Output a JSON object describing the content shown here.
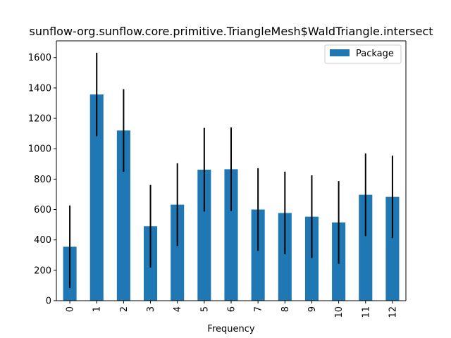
{
  "chart_data": {
    "type": "bar",
    "title": "sunflow-org.sunflow.core.primitive.TriangleMesh$WaldTriangle.intersect",
    "xlabel": "Frequency",
    "ylabel": "",
    "categories": [
      "0",
      "1",
      "2",
      "3",
      "4",
      "5",
      "6",
      "7",
      "8",
      "9",
      "10",
      "11",
      "12"
    ],
    "series": [
      {
        "name": "Package",
        "values": [
          355,
          1357,
          1120,
          490,
          632,
          862,
          865,
          600,
          577,
          553,
          515,
          697,
          683
        ],
        "error": [
          272,
          275,
          272,
          272,
          272,
          275,
          275,
          272,
          272,
          272,
          272,
          272,
          272
        ],
        "color": "#1f77b4"
      }
    ],
    "ylim": [
      0,
      1710
    ],
    "yticks": [
      0,
      200,
      400,
      600,
      800,
      1000,
      1200,
      1400,
      1600
    ],
    "legend_position": "top-right",
    "grid": false
  }
}
